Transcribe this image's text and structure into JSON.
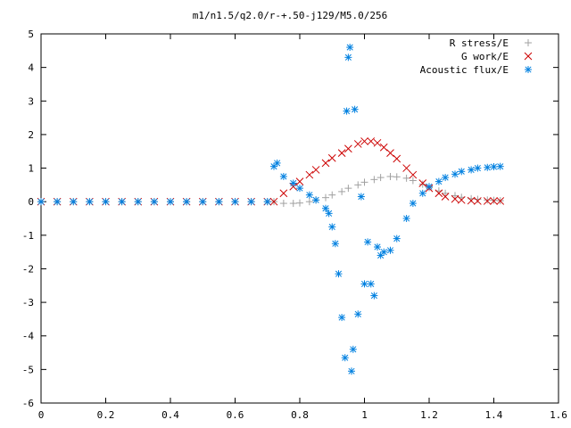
{
  "chart_data": {
    "type": "scatter",
    "title": "m1/n1.5/q2.0/r-+.50-j129/M5.0/256",
    "xlabel": "",
    "ylabel": "",
    "xlim": [
      0,
      1.6
    ],
    "ylim": [
      -6,
      5
    ],
    "x_ticks": [
      "0",
      "0.2",
      "0.4",
      "0.6",
      "0.8",
      "1",
      "1.2",
      "1.4",
      "1.6"
    ],
    "y_ticks": [
      "5",
      "4",
      "3",
      "2",
      "1",
      "0",
      "-1",
      "-2",
      "-3",
      "-4",
      "-5",
      "-6"
    ],
    "grid": false,
    "legend_position": "top-right",
    "series": [
      {
        "name": "R stress/E",
        "marker": "plus",
        "color": "#a0a0a0",
        "x": [
          0.0,
          0.05,
          0.1,
          0.15,
          0.2,
          0.25,
          0.3,
          0.35,
          0.4,
          0.45,
          0.5,
          0.55,
          0.6,
          0.65,
          0.7,
          0.72,
          0.75,
          0.78,
          0.8,
          0.83,
          0.85,
          0.88,
          0.9,
          0.93,
          0.95,
          0.98,
          1.0,
          1.03,
          1.05,
          1.08,
          1.1,
          1.13,
          1.15,
          1.18,
          1.2,
          1.23,
          1.25,
          1.28,
          1.3,
          1.33,
          1.35,
          1.38,
          1.4,
          1.42
        ],
        "y": [
          0.0,
          0.0,
          0.0,
          0.0,
          0.0,
          0.0,
          0.0,
          0.0,
          0.0,
          0.0,
          0.0,
          0.0,
          0.0,
          0.0,
          0.0,
          0.0,
          -0.05,
          -0.05,
          -0.04,
          0.0,
          0.05,
          0.12,
          0.2,
          0.3,
          0.4,
          0.5,
          0.58,
          0.66,
          0.72,
          0.75,
          0.74,
          0.7,
          0.63,
          0.52,
          0.42,
          0.32,
          0.25,
          0.18,
          0.13,
          0.09,
          0.07,
          0.05,
          0.04,
          0.03
        ]
      },
      {
        "name": "G work/E",
        "marker": "cross",
        "color": "#cc0000",
        "x": [
          0.0,
          0.05,
          0.1,
          0.15,
          0.2,
          0.25,
          0.3,
          0.35,
          0.4,
          0.45,
          0.5,
          0.55,
          0.6,
          0.65,
          0.7,
          0.72,
          0.75,
          0.78,
          0.8,
          0.83,
          0.85,
          0.88,
          0.9,
          0.93,
          0.95,
          0.98,
          1.0,
          1.02,
          1.04,
          1.06,
          1.08,
          1.1,
          1.13,
          1.15,
          1.18,
          1.2,
          1.23,
          1.25,
          1.28,
          1.3,
          1.33,
          1.35,
          1.38,
          1.4,
          1.42
        ],
        "y": [
          0.0,
          0.0,
          0.0,
          0.0,
          0.0,
          0.0,
          0.0,
          0.0,
          0.0,
          0.0,
          0.0,
          0.0,
          0.0,
          0.0,
          0.0,
          0.0,
          0.25,
          0.45,
          0.6,
          0.8,
          0.95,
          1.15,
          1.3,
          1.45,
          1.58,
          1.72,
          1.8,
          1.8,
          1.75,
          1.62,
          1.45,
          1.28,
          1.0,
          0.8,
          0.55,
          0.4,
          0.25,
          0.15,
          0.08,
          0.05,
          0.03,
          0.02,
          0.02,
          0.02,
          0.02
        ]
      },
      {
        "name": "Acoustic flux/E",
        "marker": "star",
        "color": "#0080e0",
        "x": [
          0.0,
          0.05,
          0.1,
          0.15,
          0.2,
          0.25,
          0.3,
          0.35,
          0.4,
          0.45,
          0.5,
          0.55,
          0.6,
          0.65,
          0.7,
          0.72,
          0.73,
          0.75,
          0.78,
          0.8,
          0.83,
          0.85,
          0.88,
          0.89,
          0.9,
          0.91,
          0.92,
          0.93,
          0.94,
          0.945,
          0.95,
          0.955,
          0.96,
          0.965,
          0.97,
          0.98,
          0.99,
          1.0,
          1.01,
          1.02,
          1.03,
          1.04,
          1.05,
          1.06,
          1.08,
          1.1,
          1.13,
          1.15,
          1.18,
          1.2,
          1.23,
          1.25,
          1.28,
          1.3,
          1.33,
          1.35,
          1.38,
          1.4,
          1.42
        ],
        "y": [
          0.0,
          0.0,
          0.0,
          0.0,
          0.0,
          0.0,
          0.0,
          0.0,
          0.0,
          0.0,
          0.0,
          0.0,
          0.0,
          0.0,
          0.0,
          1.05,
          1.15,
          0.75,
          0.55,
          0.4,
          0.2,
          0.05,
          -0.2,
          -0.35,
          -0.75,
          -1.25,
          -2.15,
          -3.45,
          -4.65,
          2.7,
          4.3,
          4.6,
          -5.05,
          -4.4,
          2.75,
          -3.35,
          0.15,
          -2.45,
          -1.2,
          -2.45,
          -2.8,
          -1.35,
          -1.6,
          -1.5,
          -1.45,
          -1.1,
          -0.5,
          -0.05,
          0.25,
          0.45,
          0.6,
          0.72,
          0.82,
          0.9,
          0.95,
          1.0,
          1.02,
          1.04,
          1.05
        ]
      }
    ]
  }
}
